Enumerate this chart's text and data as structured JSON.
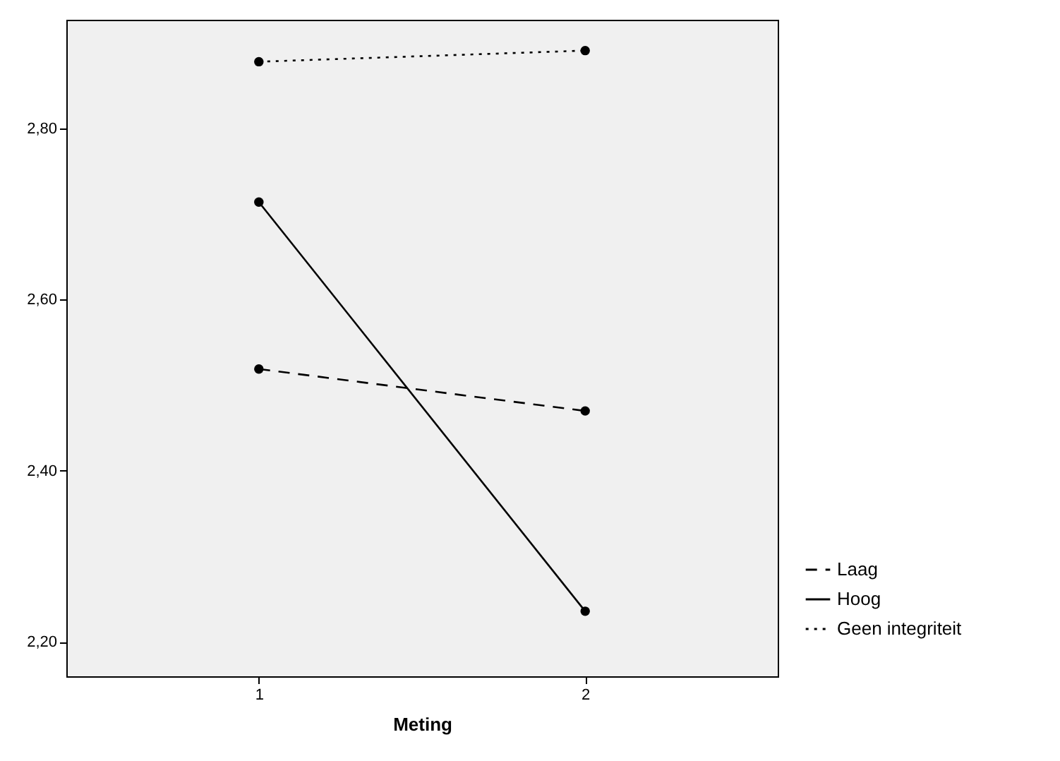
{
  "chart_data": {
    "type": "line",
    "xlabel": "Meting",
    "categories": [
      "1",
      "2"
    ],
    "series": [
      {
        "name": "Laag",
        "color": "#000000",
        "line_style": "dashed",
        "values": [
          2.519,
          2.47
        ]
      },
      {
        "name": "Hoog",
        "color": "#000000",
        "line_style": "solid",
        "values": [
          2.714,
          2.236
        ]
      },
      {
        "name": "Geen integriteit",
        "color": "#000000",
        "line_style": "dotted",
        "values": [
          2.878,
          2.891
        ]
      }
    ],
    "ylim": [
      2.16,
      2.927
    ],
    "yticks": [
      {
        "value": 2.2,
        "label": "2,20"
      },
      {
        "value": 2.4,
        "label": "2,40"
      },
      {
        "value": 2.6,
        "label": "2,60"
      },
      {
        "value": 2.8,
        "label": "2,80"
      }
    ],
    "marker": "circle",
    "grid": false,
    "legend": "bottom right"
  }
}
